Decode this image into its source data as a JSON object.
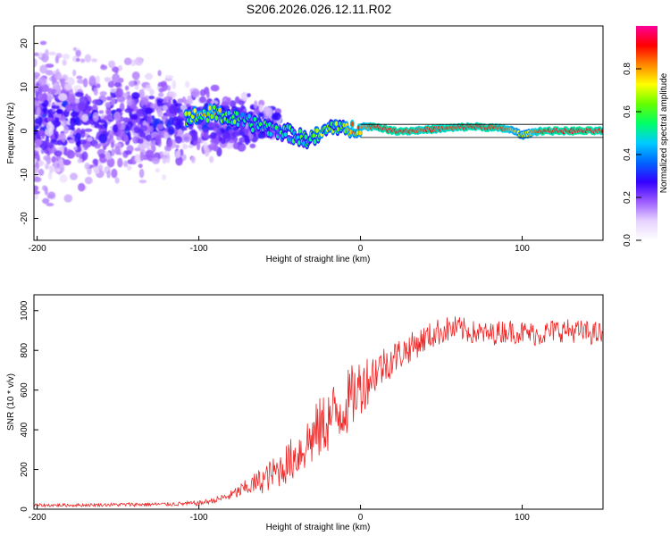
{
  "chart_data": [
    {
      "type": "heatmap",
      "title": "S206.2026.026.12.11.R02",
      "xlabel": "Height of straight line (km)",
      "ylabel": "Frequency (Hz)",
      "xlim": [
        -202,
        150
      ],
      "ylim": [
        -25,
        24
      ],
      "xticks": [
        -200,
        -100,
        0,
        100
      ],
      "xtick_labels": [
        "-200",
        "-100",
        "0",
        "100"
      ],
      "yticks": [
        -20,
        -10,
        0,
        10,
        20
      ],
      "ytick_labels": [
        "-20",
        "-10",
        "0",
        "10",
        "20"
      ],
      "colorbar": {
        "label": "Normalized spectral amplitude",
        "range": [
          0,
          1
        ],
        "ticks": [
          0.0,
          0.2,
          0.4,
          0.6,
          0.8
        ],
        "tick_labels": [
          "0.0",
          "0.2",
          "0.4",
          "0.6",
          "0.8"
        ],
        "colors": [
          "#ffffff",
          "#e6d2ff",
          "#9b59ff",
          "#3300ff",
          "#0066ff",
          "#00ccff",
          "#00ff66",
          "#66ff00",
          "#ffff00",
          "#ff8800",
          "#ff0000",
          "#ff0099"
        ]
      },
      "ridge": {
        "description": "dominant frequency track",
        "x": [
          -110,
          -90,
          -80,
          -70,
          -60,
          -50,
          -40,
          -35,
          -30,
          -25,
          -20,
          -15,
          -10,
          -5,
          0,
          10,
          20,
          30,
          50,
          70,
          90,
          95,
          100,
          105,
          110,
          120,
          140,
          150
        ],
        "y": [
          3,
          4,
          3,
          2,
          1,
          0,
          -1,
          -2,
          -1.5,
          -1,
          0.5,
          1.5,
          0,
          0.5,
          1,
          1,
          0,
          0,
          0.5,
          1,
          0.5,
          0,
          -1,
          -0.5,
          0,
          0,
          0,
          0
        ],
        "amplitude": [
          0.6,
          0.7,
          0.55,
          0.5,
          0.45,
          0.45,
          0.5,
          0.55,
          0.6,
          0.65,
          0.6,
          0.6,
          0.65,
          0.75,
          0.8,
          0.9,
          0.92,
          0.9,
          0.88,
          0.9,
          0.88,
          0.75,
          0.7,
          0.75,
          0.9,
          0.92,
          0.92,
          0.9
        ]
      },
      "noise_region": {
        "x_range": [
          -202,
          -50
        ],
        "freq_range": [
          -25,
          24
        ]
      }
    },
    {
      "type": "line",
      "xlabel": "Height of straight line (km)",
      "ylabel": "SNR (10 * v/v)",
      "xlim": [
        -202,
        150
      ],
      "ylim": [
        0,
        1080
      ],
      "xticks": [
        -200,
        -100,
        0,
        100
      ],
      "xtick_labels": [
        "-200",
        "-100",
        "0",
        "100"
      ],
      "yticks": [
        0,
        200,
        400,
        600,
        800,
        1000
      ],
      "ytick_labels": [
        "0",
        "200",
        "400",
        "600",
        "800",
        "1000"
      ],
      "color": "#ee2222",
      "series": [
        {
          "name": "SNR",
          "x": [
            -202,
            -180,
            -160,
            -140,
            -120,
            -100,
            -90,
            -80,
            -70,
            -60,
            -50,
            -40,
            -30,
            -20,
            -10,
            0,
            10,
            20,
            30,
            40,
            50,
            60,
            70,
            80,
            90,
            100,
            110,
            120,
            130,
            140,
            150
          ],
          "y": [
            20,
            20,
            22,
            24,
            25,
            30,
            45,
            70,
            110,
            150,
            200,
            270,
            360,
            450,
            520,
            620,
            700,
            760,
            810,
            860,
            900,
            910,
            890,
            880,
            900,
            890,
            880,
            900,
            900,
            890,
            880
          ],
          "noise_amplitude": [
            8,
            8,
            8,
            10,
            10,
            12,
            15,
            25,
            45,
            70,
            90,
            120,
            150,
            170,
            170,
            150,
            110,
            90,
            75,
            70,
            70,
            65,
            60,
            60,
            60,
            60,
            60,
            60,
            60,
            60,
            60
          ]
        }
      ]
    }
  ]
}
